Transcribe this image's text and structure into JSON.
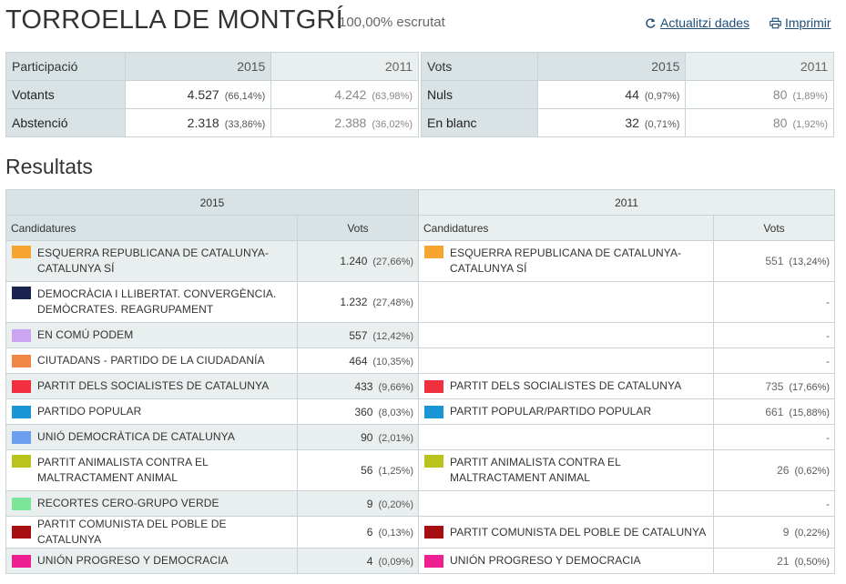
{
  "header": {
    "town": "TORROELLA DE MONTGRÍ",
    "scrutiny": "100,00% escrutat",
    "refresh_label": "Actualitzi dades",
    "print_label": "Imprimir",
    "refresh_icon": "refresh-icon",
    "print_icon": "printer-icon"
  },
  "participation": {
    "header": {
      "label": "Participació",
      "y2015": "2015",
      "y2011": "2011"
    },
    "rows": [
      {
        "label": "Votants",
        "v2015": "4.527",
        "p2015": "(66,14%)",
        "v2011": "4.242",
        "p2011": "(63,98%)"
      },
      {
        "label": "Abstenció",
        "v2015": "2.318",
        "p2015": "(33,86%)",
        "v2011": "2.388",
        "p2011": "(36,02%)"
      }
    ]
  },
  "votes": {
    "header": {
      "label": "Vots",
      "y2015": "2015",
      "y2011": "2011"
    },
    "rows": [
      {
        "label": "Nuls",
        "v2015": "44",
        "p2015": "(0,97%)",
        "v2011": "80",
        "p2011": "(1,89%)"
      },
      {
        "label": "En blanc",
        "v2015": "32",
        "p2015": "(0,71%)",
        "v2011": "80",
        "p2011": "(1,92%)"
      }
    ]
  },
  "results": {
    "title": "Resultats",
    "year2015": "2015",
    "year2011": "2011",
    "col_candidatures": "Candidatures",
    "col_votes": "Vots",
    "rows": [
      {
        "p15": "ESQUERRA REPUBLICANA DE CATALUNYA-CATALUNYA SÍ",
        "c15": "#f7a531",
        "v15": "1.240",
        "pc15": "(27,66%)",
        "p11": "ESQUERRA REPUBLICANA DE CATALUNYA-CATALUNYA SÍ",
        "c11": "#f7a531",
        "v11": "551",
        "pc11": "(13,24%)"
      },
      {
        "p15": "DEMOCRÀCIA I LLIBERTAT. CONVERGÈNCIA. DEMÒCRATES. REAGRUPAMENT",
        "c15": "#1b2451",
        "v15": "1.232",
        "pc15": "(27,48%)",
        "p11": "",
        "c11": "",
        "v11": "-",
        "pc11": ""
      },
      {
        "p15": "EN COMÚ PODEM",
        "c15": "#cda4f2",
        "v15": "557",
        "pc15": "(12,42%)",
        "p11": "",
        "c11": "",
        "v11": "-",
        "pc11": ""
      },
      {
        "p15": "CIUTADANS - PARTIDO DE LA CIUDADANÍA",
        "c15": "#f08746",
        "v15": "464",
        "pc15": "(10,35%)",
        "p11": "",
        "c11": "",
        "v11": "-",
        "pc11": ""
      },
      {
        "p15": "PARTIT DELS SOCIALISTES DE CATALUNYA",
        "c15": "#f0303f",
        "v15": "433",
        "pc15": "(9,66%)",
        "p11": "PARTIT DELS SOCIALISTES DE CATALUNYA",
        "c11": "#f0303f",
        "v11": "735",
        "pc11": "(17,66%)"
      },
      {
        "p15": "PARTIDO POPULAR",
        "c15": "#1a96d6",
        "v15": "360",
        "pc15": "(8,03%)",
        "p11": "PARTIT POPULAR/PARTIDO POPULAR",
        "c11": "#1a96d6",
        "v11": "661",
        "pc11": "(15,88%)"
      },
      {
        "p15": "UNIÓ DEMOCRÀTICA DE CATALUNYA",
        "c15": "#6d9ff0",
        "v15": "90",
        "pc15": "(2,01%)",
        "p11": "",
        "c11": "",
        "v11": "-",
        "pc11": ""
      },
      {
        "p15": "PARTIT ANIMALISTA CONTRA EL MALTRACTAMENT ANIMAL",
        "c15": "#b9c31b",
        "v15": "56",
        "pc15": "(1,25%)",
        "p11": "PARTIT ANIMALISTA CONTRA EL MALTRACTAMENT ANIMAL",
        "c11": "#b9c31b",
        "v11": "26",
        "pc11": "(0,62%)"
      },
      {
        "p15": "RECORTES CERO-GRUPO VERDE",
        "c15": "#7be69a",
        "v15": "9",
        "pc15": "(0,20%)",
        "p11": "",
        "c11": "",
        "v11": "-",
        "pc11": ""
      },
      {
        "p15": "PARTIT COMUNISTA DEL POBLE DE CATALUNYA",
        "c15": "#a60e12",
        "v15": "6",
        "pc15": "(0,13%)",
        "p11": "PARTIT COMUNISTA DEL POBLE DE CATALUNYA",
        "c11": "#a60e12",
        "v11": "9",
        "pc11": "(0,22%)"
      },
      {
        "p15": "UNIÓN PROGRESO Y DEMOCRACIA",
        "c15": "#ee1f91",
        "v15": "4",
        "pc15": "(0,09%)",
        "p11": "UNIÓN PROGRESO Y DEMOCRACIA",
        "c11": "#ee1f91",
        "v11": "21",
        "pc11": "(0,50%)"
      }
    ]
  }
}
